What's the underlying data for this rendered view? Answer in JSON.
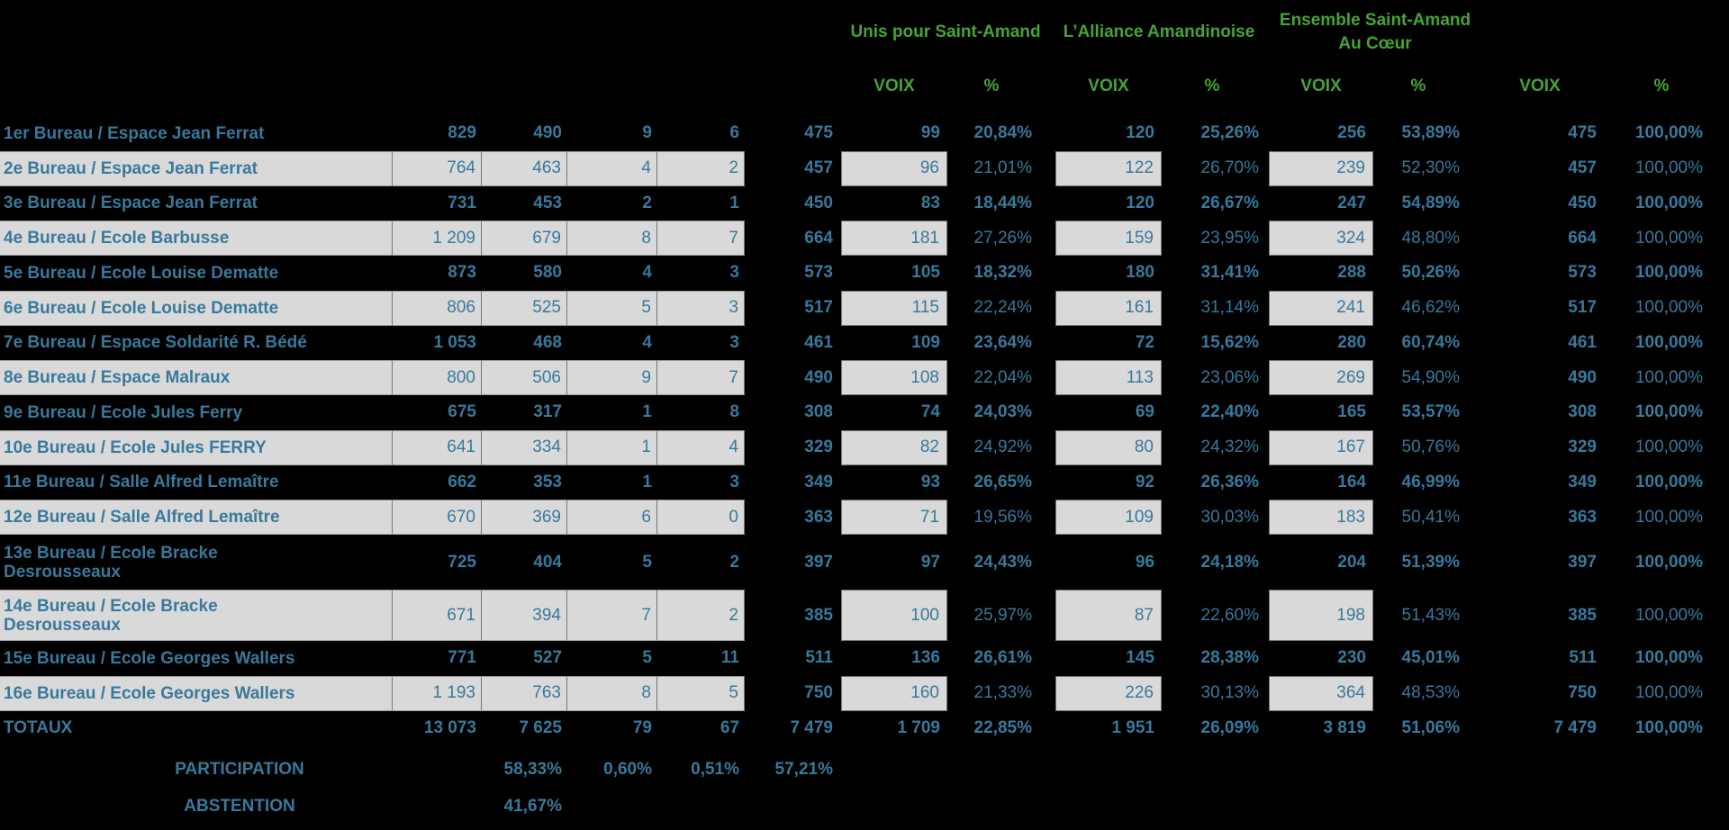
{
  "header": {
    "lists": [
      {
        "name": "Unis pour Saint-Amand"
      },
      {
        "name": "L’Alliance Amandinoise"
      },
      {
        "name": "Ensemble Saint-Amand\nAu Cœur"
      }
    ],
    "voix_label": "VOIX",
    "pct_label": "%"
  },
  "rows": [
    {
      "label": "1er Bureau / Espace Jean Ferrat",
      "inscrits": "829",
      "votants": "490",
      "blancs": "9",
      "nuls": "6",
      "exprimes": "475",
      "l1_voix": "99",
      "l1_pct": "20,84%",
      "l2_voix": "120",
      "l2_pct": "25,26%",
      "l3_voix": "256",
      "l3_pct": "53,89%",
      "tot_voix": "475",
      "tot_pct": "100,00%"
    },
    {
      "label": "2e Bureau / Espace Jean Ferrat",
      "inscrits": "764",
      "votants": "463",
      "blancs": "4",
      "nuls": "2",
      "exprimes": "457",
      "l1_voix": "96",
      "l1_pct": "21,01%",
      "l2_voix": "122",
      "l2_pct": "26,70%",
      "l3_voix": "239",
      "l3_pct": "52,30%",
      "tot_voix": "457",
      "tot_pct": "100,00%"
    },
    {
      "label": "3e Bureau / Espace Jean Ferrat",
      "inscrits": "731",
      "votants": "453",
      "blancs": "2",
      "nuls": "1",
      "exprimes": "450",
      "l1_voix": "83",
      "l1_pct": "18,44%",
      "l2_voix": "120",
      "l2_pct": "26,67%",
      "l3_voix": "247",
      "l3_pct": "54,89%",
      "tot_voix": "450",
      "tot_pct": "100,00%"
    },
    {
      "label": "4e Bureau / Ecole Barbusse",
      "inscrits": "1 209",
      "votants": "679",
      "blancs": "8",
      "nuls": "7",
      "exprimes": "664",
      "l1_voix": "181",
      "l1_pct": "27,26%",
      "l2_voix": "159",
      "l2_pct": "23,95%",
      "l3_voix": "324",
      "l3_pct": "48,80%",
      "tot_voix": "664",
      "tot_pct": "100,00%"
    },
    {
      "label": "5e Bureau / Ecole Louise Dematte",
      "inscrits": "873",
      "votants": "580",
      "blancs": "4",
      "nuls": "3",
      "exprimes": "573",
      "l1_voix": "105",
      "l1_pct": "18,32%",
      "l2_voix": "180",
      "l2_pct": "31,41%",
      "l3_voix": "288",
      "l3_pct": "50,26%",
      "tot_voix": "573",
      "tot_pct": "100,00%"
    },
    {
      "label": "6e Bureau / Ecole Louise Dematte",
      "inscrits": "806",
      "votants": "525",
      "blancs": "5",
      "nuls": "3",
      "exprimes": "517",
      "l1_voix": "115",
      "l1_pct": "22,24%",
      "l2_voix": "161",
      "l2_pct": "31,14%",
      "l3_voix": "241",
      "l3_pct": "46,62%",
      "tot_voix": "517",
      "tot_pct": "100,00%"
    },
    {
      "label": "7e Bureau / Espace Soldarité R. Bédé",
      "inscrits": "1 053",
      "votants": "468",
      "blancs": "4",
      "nuls": "3",
      "exprimes": "461",
      "l1_voix": "109",
      "l1_pct": "23,64%",
      "l2_voix": "72",
      "l2_pct": "15,62%",
      "l3_voix": "280",
      "l3_pct": "60,74%",
      "tot_voix": "461",
      "tot_pct": "100,00%"
    },
    {
      "label": "8e Bureau / Espace Malraux",
      "inscrits": "800",
      "votants": "506",
      "blancs": "9",
      "nuls": "7",
      "exprimes": "490",
      "l1_voix": "108",
      "l1_pct": "22,04%",
      "l2_voix": "113",
      "l2_pct": "23,06%",
      "l3_voix": "269",
      "l3_pct": "54,90%",
      "tot_voix": "490",
      "tot_pct": "100,00%"
    },
    {
      "label": "9e Bureau / Ecole Jules Ferry",
      "inscrits": "675",
      "votants": "317",
      "blancs": "1",
      "nuls": "8",
      "exprimes": "308",
      "l1_voix": "74",
      "l1_pct": "24,03%",
      "l2_voix": "69",
      "l2_pct": "22,40%",
      "l3_voix": "165",
      "l3_pct": "53,57%",
      "tot_voix": "308",
      "tot_pct": "100,00%"
    },
    {
      "label": "10e Bureau / Ecole Jules FERRY",
      "inscrits": "641",
      "votants": "334",
      "blancs": "1",
      "nuls": "4",
      "exprimes": "329",
      "l1_voix": "82",
      "l1_pct": "24,92%",
      "l2_voix": "80",
      "l2_pct": "24,32%",
      "l3_voix": "167",
      "l3_pct": "50,76%",
      "tot_voix": "329",
      "tot_pct": "100,00%"
    },
    {
      "label": "11e Bureau / Salle Alfred Lemaître",
      "inscrits": "662",
      "votants": "353",
      "blancs": "1",
      "nuls": "3",
      "exprimes": "349",
      "l1_voix": "93",
      "l1_pct": "26,65%",
      "l2_voix": "92",
      "l2_pct": "26,36%",
      "l3_voix": "164",
      "l3_pct": "46,99%",
      "tot_voix": "349",
      "tot_pct": "100,00%"
    },
    {
      "label": "12e Bureau / Salle Alfred Lemaître",
      "inscrits": "670",
      "votants": "369",
      "blancs": "6",
      "nuls": "0",
      "exprimes": "363",
      "l1_voix": "71",
      "l1_pct": "19,56%",
      "l2_voix": "109",
      "l2_pct": "30,03%",
      "l3_voix": "183",
      "l3_pct": "50,41%",
      "tot_voix": "363",
      "tot_pct": "100,00%"
    },
    {
      "label": "13e Bureau / Ecole Bracke\nDesrousseaux",
      "inscrits": "725",
      "votants": "404",
      "blancs": "5",
      "nuls": "2",
      "exprimes": "397",
      "l1_voix": "97",
      "l1_pct": "24,43%",
      "l2_voix": "96",
      "l2_pct": "24,18%",
      "l3_voix": "204",
      "l3_pct": "51,39%",
      "tot_voix": "397",
      "tot_pct": "100,00%"
    },
    {
      "label": "14e Bureau / Ecole Bracke\nDesrousseaux",
      "inscrits": "671",
      "votants": "394",
      "blancs": "7",
      "nuls": "2",
      "exprimes": "385",
      "l1_voix": "100",
      "l1_pct": "25,97%",
      "l2_voix": "87",
      "l2_pct": "22,60%",
      "l3_voix": "198",
      "l3_pct": "51,43%",
      "tot_voix": "385",
      "tot_pct": "100,00%"
    },
    {
      "label": "15e Bureau / Ecole Georges Wallers",
      "inscrits": "771",
      "votants": "527",
      "blancs": "5",
      "nuls": "11",
      "exprimes": "511",
      "l1_voix": "136",
      "l1_pct": "26,61%",
      "l2_voix": "145",
      "l2_pct": "28,38%",
      "l3_voix": "230",
      "l3_pct": "45,01%",
      "tot_voix": "511",
      "tot_pct": "100,00%"
    },
    {
      "label": "16e Bureau / Ecole Georges Wallers",
      "inscrits": "1 193",
      "votants": "763",
      "blancs": "8",
      "nuls": "5",
      "exprimes": "750",
      "l1_voix": "160",
      "l1_pct": "21,33%",
      "l2_voix": "226",
      "l2_pct": "30,13%",
      "l3_voix": "364",
      "l3_pct": "48,53%",
      "tot_voix": "750",
      "tot_pct": "100,00%"
    }
  ],
  "totals": {
    "label": "TOTAUX",
    "inscrits": "13 073",
    "votants": "7 625",
    "blancs": "79",
    "nuls": "67",
    "exprimes": "7 479",
    "l1_voix": "1 709",
    "l1_pct": "22,85%",
    "l2_voix": "1 951",
    "l2_pct": "26,09%",
    "l3_voix": "3 819",
    "l3_pct": "51,06%",
    "tot_voix": "7 479",
    "tot_pct": "100,00%"
  },
  "participation": {
    "label": "PARTICIPATION",
    "votants": "58,33%",
    "blancs": "0,60%",
    "nuls": "0,51%",
    "exprimes": "57,21%"
  },
  "abstention": {
    "label": "ABSTENTION",
    "votants": "41,67%"
  },
  "colors": {
    "accent_green": "#46a434",
    "text_teal": "#38799c",
    "shaded_cell": "#d9d9d9",
    "background": "#000000"
  }
}
